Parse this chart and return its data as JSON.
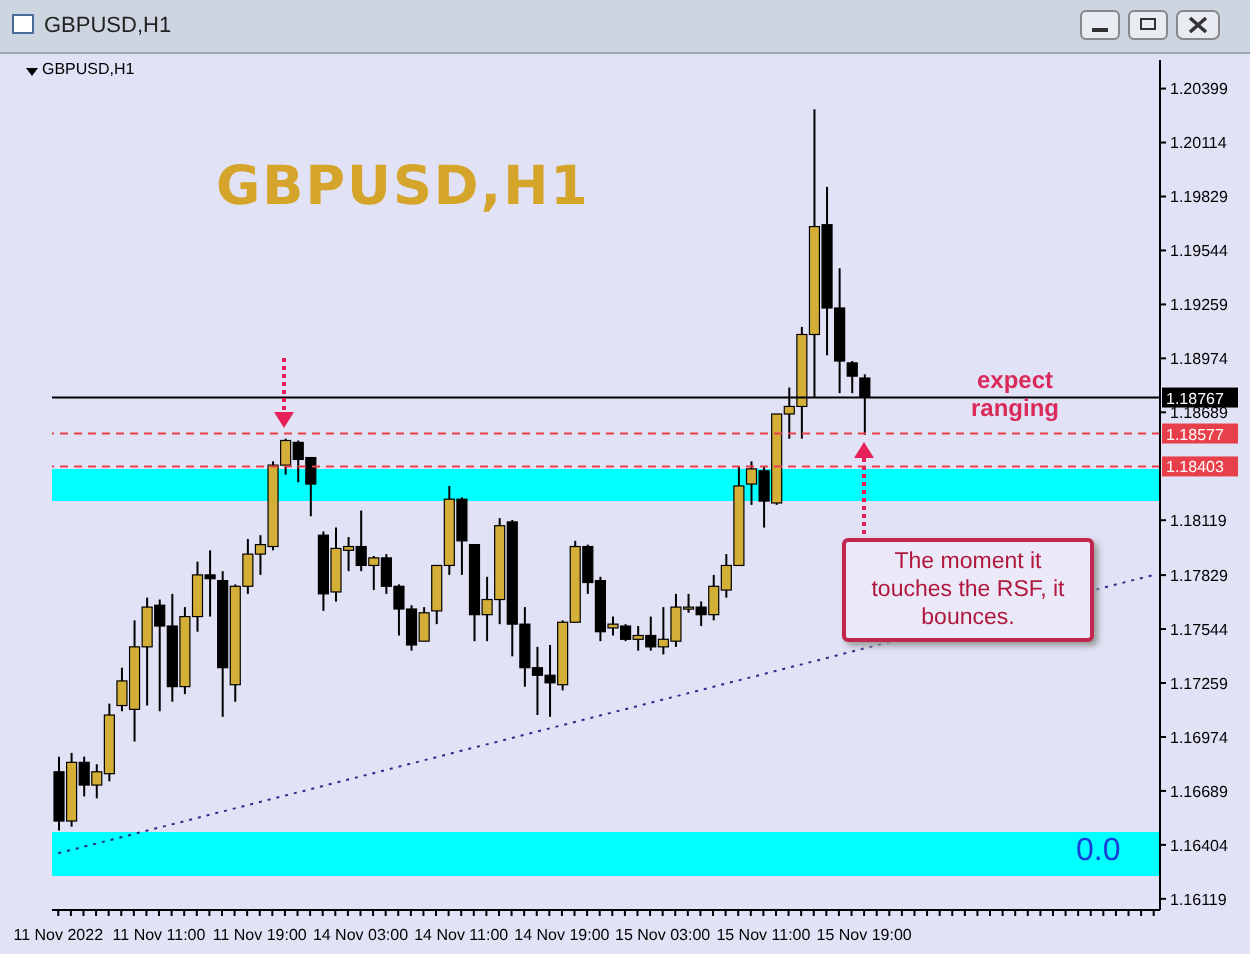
{
  "chart_data": {
    "type": "candlestick",
    "title": "GBPUSD,H1",
    "subtitle": "GBPUSD,H1",
    "annotations": [
      "GBPUSD,H1",
      "expect ranging",
      "The moment it touches the RSF, it bounces.",
      "0.0"
    ],
    "categories": [
      "11 Nov 2022",
      null,
      null,
      null,
      null,
      null,
      null,
      null,
      "11 Nov 11:00",
      null,
      null,
      null,
      null,
      null,
      null,
      null,
      "11 Nov 19:00",
      null,
      null,
      null,
      null,
      null,
      null,
      null,
      "14 Nov 03:00",
      null,
      null,
      null,
      null,
      null,
      null,
      null,
      "14 Nov 11:00",
      null,
      null,
      null,
      null,
      null,
      null,
      null,
      "14 Nov 19:00",
      null,
      null,
      null,
      null,
      null,
      null,
      null,
      "15 Nov 03:00",
      null,
      null,
      null,
      null,
      null,
      null,
      null,
      "15 Nov 11:00",
      null,
      null,
      null,
      null,
      null,
      null,
      null,
      "15 Nov 19:00",
      null,
      null,
      null,
      null,
      null,
      null,
      null,
      null,
      null,
      null,
      null,
      null,
      null,
      null,
      null,
      null,
      null,
      null,
      null,
      null,
      null,
      null,
      null
    ],
    "ohlc": [
      [
        1.1679,
        1.1687,
        1.1648,
        1.1653
      ],
      [
        1.1653,
        1.1689,
        1.165,
        1.1684
      ],
      [
        1.1684,
        1.1687,
        1.1666,
        1.1672
      ],
      [
        1.1672,
        1.1683,
        1.1665,
        1.1679
      ],
      [
        1.1678,
        1.1715,
        1.1674,
        1.1709
      ],
      [
        1.1714,
        1.1734,
        1.1711,
        1.1727
      ],
      [
        1.1712,
        1.1759,
        1.1695,
        1.1745
      ],
      [
        1.1745,
        1.1771,
        1.1714,
        1.1766
      ],
      [
        1.1767,
        1.177,
        1.1711,
        1.1756
      ],
      [
        1.1756,
        1.1773,
        1.1716,
        1.1724
      ],
      [
        1.1724,
        1.1766,
        1.172,
        1.1761
      ],
      [
        1.1761,
        1.179,
        1.1753,
        1.1783
      ],
      [
        1.1783,
        1.1796,
        1.1761,
        1.1781
      ],
      [
        1.178,
        1.1785,
        1.1708,
        1.1734
      ],
      [
        1.1725,
        1.1778,
        1.1716,
        1.1777
      ],
      [
        1.1777,
        1.1802,
        1.1773,
        1.1794
      ],
      [
        1.1794,
        1.1804,
        1.1783,
        1.1799
      ],
      [
        1.1798,
        1.1843,
        1.1796,
        1.1841
      ],
      [
        1.1841,
        1.1855,
        1.1836,
        1.1854
      ],
      [
        1.1853,
        1.1854,
        1.1832,
        1.1844
      ],
      [
        1.1845,
        1.1845,
        1.1814,
        1.1831
      ],
      [
        1.1804,
        1.1806,
        1.1764,
        1.1773
      ],
      [
        1.1774,
        1.1808,
        1.1769,
        1.1797
      ],
      [
        1.1796,
        1.1803,
        1.1785,
        1.1798
      ],
      [
        1.1798,
        1.1817,
        1.1785,
        1.1788
      ],
      [
        1.1788,
        1.1793,
        1.1775,
        1.1792
      ],
      [
        1.1792,
        1.1794,
        1.1773,
        1.1777
      ],
      [
        1.1777,
        1.1778,
        1.1751,
        1.1765
      ],
      [
        1.1765,
        1.1767,
        1.1743,
        1.1746
      ],
      [
        1.1748,
        1.1766,
        1.1748,
        1.1763
      ],
      [
        1.1764,
        1.1788,
        1.1757,
        1.1788
      ],
      [
        1.1788,
        1.183,
        1.1783,
        1.1823
      ],
      [
        1.1823,
        1.1824,
        1.1783,
        1.1801
      ],
      [
        1.1799,
        1.1799,
        1.1748,
        1.1762
      ],
      [
        1.1762,
        1.1782,
        1.1748,
        1.177
      ],
      [
        1.177,
        1.1813,
        1.1757,
        1.1809
      ],
      [
        1.1811,
        1.1812,
        1.174,
        1.1757
      ],
      [
        1.1757,
        1.1766,
        1.1724,
        1.1734
      ],
      [
        1.1734,
        1.1745,
        1.1709,
        1.173
      ],
      [
        1.173,
        1.1746,
        1.1708,
        1.1726
      ],
      [
        1.1725,
        1.1759,
        1.1722,
        1.1758
      ],
      [
        1.1758,
        1.1801,
        1.1758,
        1.1798
      ],
      [
        1.1798,
        1.1799,
        1.1773,
        1.1779
      ],
      [
        1.178,
        1.1782,
        1.1748,
        1.1753
      ],
      [
        1.1755,
        1.1761,
        1.1751,
        1.1757
      ],
      [
        1.1756,
        1.1757,
        1.1748,
        1.1749
      ],
      [
        1.1749,
        1.1756,
        1.1743,
        1.1751
      ],
      [
        1.1751,
        1.1761,
        1.1743,
        1.1745
      ],
      [
        1.1745,
        1.1766,
        1.1741,
        1.1749
      ],
      [
        1.1748,
        1.1773,
        1.1745,
        1.1766
      ],
      [
        1.1765,
        1.1773,
        1.1763,
        1.1766
      ],
      [
        1.1766,
        1.1769,
        1.1756,
        1.1762
      ],
      [
        1.1762,
        1.1783,
        1.1759,
        1.1777
      ],
      [
        1.1775,
        1.1794,
        1.1771,
        1.1788
      ],
      [
        1.1788,
        1.184,
        1.1788,
        1.183
      ],
      [
        1.1831,
        1.1843,
        1.182,
        1.1839
      ],
      [
        1.1838,
        1.184,
        1.1808,
        1.1822
      ],
      [
        1.1821,
        1.1868,
        1.182,
        1.1868
      ],
      [
        1.1868,
        1.1882,
        1.1855,
        1.1872
      ],
      [
        1.1872,
        1.1914,
        1.1855,
        1.191
      ],
      [
        1.191,
        1.2029,
        1.1877,
        1.1967
      ],
      [
        1.1968,
        1.1988,
        1.1899,
        1.1924
      ],
      [
        1.1924,
        1.1945,
        1.1879,
        1.1896
      ],
      [
        1.1895,
        1.1896,
        1.1879,
        1.1888
      ],
      [
        1.1887,
        1.1889,
        1.1857,
        1.1877
      ],
      null,
      null,
      null,
      null,
      null,
      null,
      null,
      null,
      null,
      null,
      null,
      null,
      null,
      null,
      null,
      null,
      null,
      null,
      null,
      null,
      null,
      null,
      null
    ],
    "ylim": [
      1.1606,
      1.2055
    ],
    "yticks": [
      1.20399,
      1.20114,
      1.19829,
      1.19544,
      1.19259,
      1.18974,
      1.18689,
      1.18119,
      1.17829,
      1.17544,
      1.17259,
      1.16974,
      1.16689,
      1.16404,
      1.16119
    ],
    "ref_lines": [
      {
        "axis": "y",
        "value": 1.18767,
        "label": "1.18767",
        "color": "#000000",
        "line_style": "solid"
      },
      {
        "axis": "y",
        "value": 1.18577,
        "label": "1.18577",
        "color": "#e8404a",
        "line_style": "dashed"
      },
      {
        "axis": "y",
        "value": 1.18403,
        "label": "1.18403",
        "color": "#e8404a",
        "line_style": "dashed"
      }
    ],
    "bands": [
      {
        "axis": "y",
        "from": 1.1822,
        "to": 1.1839,
        "color": "#00ffff"
      }
    ],
    "series": [
      {
        "type": "line",
        "color": "#2b2b8c",
        "line_style": "dotted",
        "values": [
          1.1636,
          null,
          null,
          null,
          null,
          null,
          null,
          null,
          null,
          null,
          null,
          null,
          null,
          null,
          null,
          null,
          null,
          null,
          null,
          null,
          null,
          null,
          null,
          null,
          null,
          null,
          null,
          null,
          null,
          null,
          null,
          null,
          null,
          null,
          null,
          null,
          null,
          null,
          null,
          null,
          null,
          null,
          null,
          null,
          null,
          null,
          null,
          null,
          null,
          null,
          null,
          null,
          null,
          null,
          null,
          null,
          null,
          null,
          null,
          null,
          null,
          null,
          null,
          null,
          null,
          null,
          null,
          null,
          null,
          null,
          null,
          null,
          null,
          null,
          null,
          null,
          null,
          null,
          null,
          null,
          null,
          null,
          null,
          null,
          null,
          null,
          null,
          1.1783
        ]
      }
    ]
  }
}
